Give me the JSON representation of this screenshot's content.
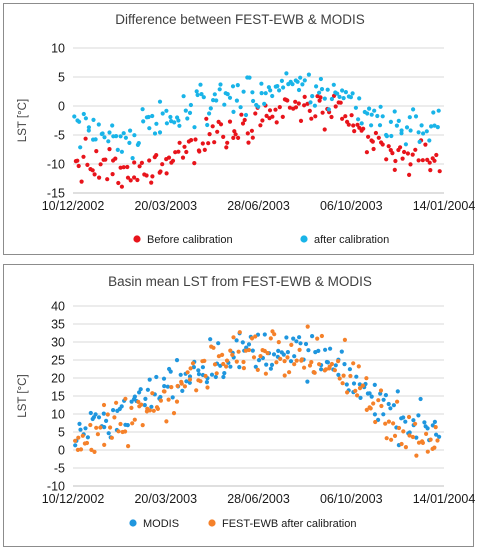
{
  "colors": {
    "red_series": "#e8141b",
    "blue_series": "#19b4e8",
    "orange_series": "#f5812a",
    "modis_series": "#1f96de",
    "gridline": "#d9d9d9",
    "frame": "#8c8c8c"
  },
  "chart_data": [
    {
      "type": "scatter",
      "title": "Difference between FEST-EWB & MODIS",
      "xlabel": "",
      "ylabel": "LST [°C]",
      "x_scale": "date",
      "xlim": [
        "10/12/2002",
        "14/01/2004"
      ],
      "x_ticks": [
        "10/12/2002",
        "20/03/2003",
        "28/06/2003",
        "06/10/2003",
        "14/01/2004"
      ],
      "ylim": [
        -15,
        10
      ],
      "y_ticks": [
        "-15",
        "-10",
        "-5",
        "0",
        "5",
        "10"
      ],
      "grid": "horizontal",
      "legend_position": "bottom",
      "series": [
        {
          "name": "Before calibration",
          "color": "#e8141b",
          "trend_x": [
            "10/12/2002",
            "13/01/2003",
            "12/02/2003",
            "24/03/2003",
            "23/04/2003",
            "03/06/2003",
            "13/07/2003",
            "22/08/2003",
            "21/09/2003",
            "21/10/2003",
            "20/11/2003",
            "20/12/2003",
            "09/01/2004"
          ],
          "trend_y": [
            -9.5,
            -10.5,
            -12.5,
            -9,
            -6.5,
            -3.5,
            -1.5,
            0,
            -2,
            -5.5,
            -8.5,
            -9,
            -9
          ]
        },
        {
          "name": "after calibration",
          "color": "#19b4e8",
          "trend_x": [
            "10/12/2002",
            "13/01/2003",
            "12/02/2003",
            "24/03/2003",
            "23/04/2003",
            "03/06/2003",
            "13/07/2003",
            "22/08/2003",
            "21/09/2003",
            "21/10/2003",
            "20/11/2003",
            "20/12/2003",
            "09/01/2004"
          ],
          "trend_y": [
            -3,
            -4.5,
            -6,
            -1.5,
            0.5,
            1.5,
            2.5,
            3,
            2,
            -0.5,
            -3,
            -4,
            -3
          ]
        }
      ]
    },
    {
      "type": "scatter",
      "title": "Basin mean LST from FEST-EWB & MODIS",
      "xlabel": "",
      "ylabel": "LST [°C]",
      "x_scale": "date",
      "xlim": [
        "10/12/2002",
        "14/01/2004"
      ],
      "x_ticks": [
        "10/12/2002",
        "20/03/2003",
        "28/06/2003",
        "06/10/2003",
        "14/01/2004"
      ],
      "ylim": [
        -10,
        40
      ],
      "y_ticks": [
        "-10",
        "-5",
        "0",
        "5",
        "10",
        "15",
        "20",
        "25",
        "30",
        "35",
        "40"
      ],
      "grid": "horizontal",
      "legend_position": "bottom",
      "series": [
        {
          "name": "MODIS",
          "color": "#1f96de",
          "trend_x": [
            "10/12/2002",
            "13/01/2003",
            "12/02/2003",
            "14/03/2003",
            "13/04/2003",
            "13/05/2003",
            "12/06/2003",
            "12/07/2003",
            "11/08/2003",
            "10/09/2003",
            "10/10/2003",
            "09/11/2003",
            "09/12/2003",
            "08/01/2004"
          ],
          "trend_y": [
            4,
            8,
            12,
            17,
            22,
            25,
            27,
            28,
            27,
            24,
            19,
            13,
            7,
            7
          ]
        },
        {
          "name": "FEST-EWB after calibration",
          "color": "#f5812a",
          "trend_x": [
            "10/12/2002",
            "13/01/2003",
            "12/02/2003",
            "14/03/2003",
            "13/04/2003",
            "13/05/2003",
            "12/06/2003",
            "12/07/2003",
            "11/08/2003",
            "10/09/2003",
            "10/10/2003",
            "09/11/2003",
            "09/12/2003",
            "08/01/2004"
          ],
          "trend_y": [
            2,
            5,
            8,
            14,
            20,
            24,
            27,
            29,
            28,
            24,
            19,
            11,
            4,
            5
          ]
        }
      ]
    }
  ]
}
